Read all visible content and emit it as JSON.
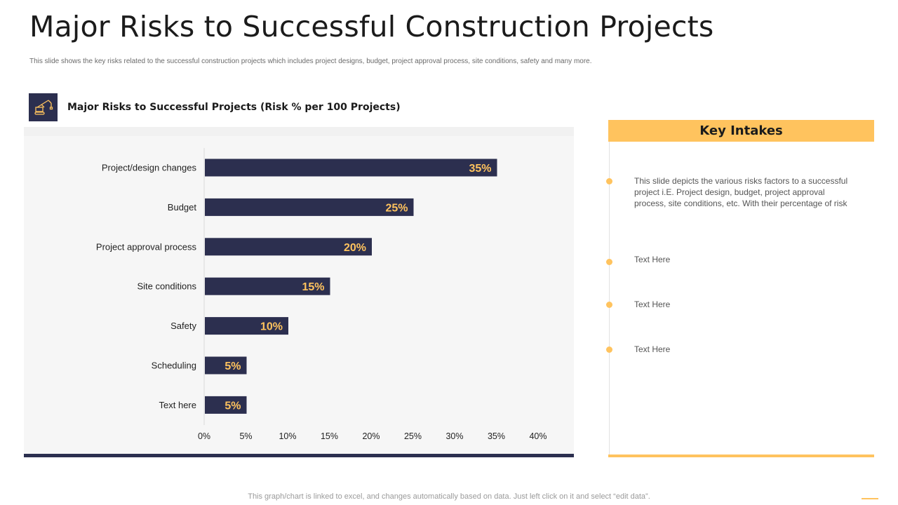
{
  "title": "Major Risks to Successful Construction Projects",
  "subtitle": "This slide shows the key risks related to the successful construction projects which includes project designs, budget, project approval process, site conditions, safety and many more.",
  "chart_heading": "Major Risks to Successful Projects (Risk % per 100 Projects)",
  "chart_icon": "crane-icon",
  "chart_data": {
    "type": "bar",
    "orientation": "horizontal",
    "title": "Major Risks to Successful Projects (Risk % per 100 Projects)",
    "categories": [
      "Project/design changes",
      "Budget",
      "Project approval process",
      "Site conditions",
      "Safety",
      "Scheduling",
      "Text here"
    ],
    "values": [
      35,
      25,
      20,
      15,
      10,
      5,
      5
    ],
    "value_labels": [
      "35%",
      "25%",
      "20%",
      "15%",
      "10%",
      "5%",
      "5%"
    ],
    "xlim": [
      0,
      40
    ],
    "x_ticks": [
      "0%",
      "5%",
      "10%",
      "15%",
      "20%",
      "25%",
      "30%",
      "35%",
      "40%"
    ],
    "xlabel": "",
    "ylabel": "",
    "grid": false,
    "legend": "none",
    "bar_color": "#2c2f4f",
    "label_color": "#ffc35e"
  },
  "key_intakes": {
    "header": "Key Intakes",
    "items": [
      "This slide depicts the various  risks factors to a successful project i.E. Project design, budget, project approval  process, site conditions, etc. With their percentage  of risk",
      "Text Here",
      "Text Here",
      "Text Here"
    ]
  },
  "footer": "This graph/chart is linked to excel,  and changes automatically based on data. Just left click on it and select “edit data”.",
  "colors": {
    "navy": "#2c2f4f",
    "accent": "#ffc35e",
    "panel": "#f6f6f6"
  }
}
